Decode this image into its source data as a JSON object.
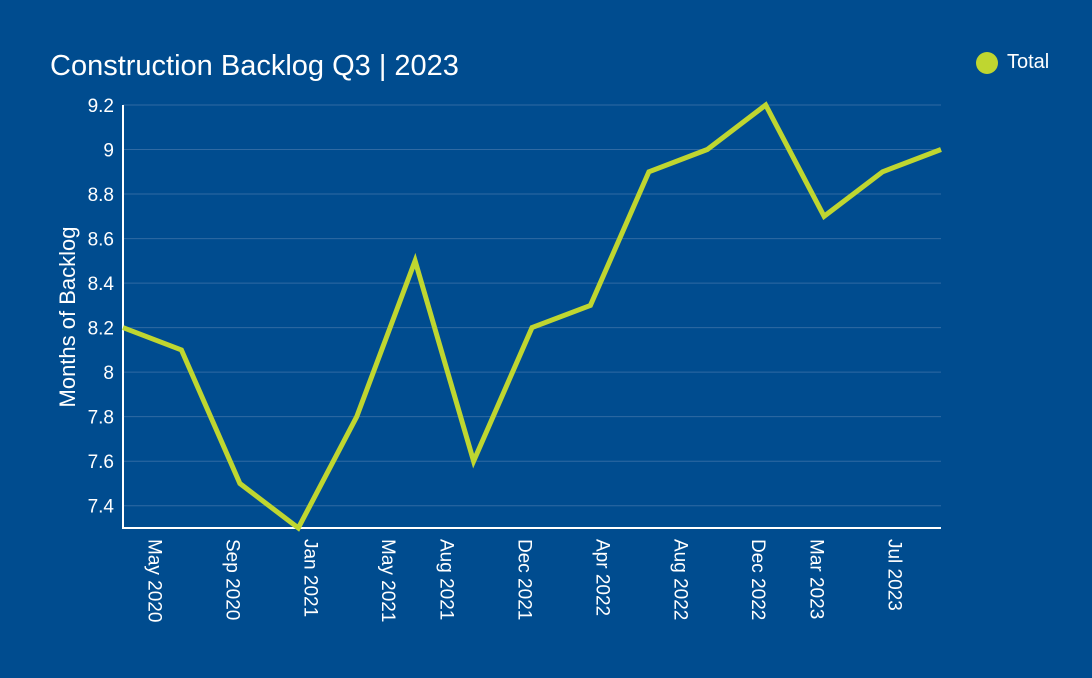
{
  "chart_data": {
    "type": "line",
    "title": "Construction Backlog Q3 | 2023",
    "ylabel": "Months of Backlog",
    "xlabel": "",
    "ylim": [
      7.3,
      9.2
    ],
    "yticks": [
      "7.4",
      "7.6",
      "7.8",
      "8",
      "8.2",
      "8.4",
      "8.6",
      "8.8",
      "9",
      "9.2"
    ],
    "xticks": [
      "May 2020",
      "Sep 2020",
      "Jan 2021",
      "May 2021",
      "Aug 2021",
      "Dec 2021",
      "Apr 2022",
      "Aug 2022",
      "Dec 2022",
      "Mar 2023",
      "Jul 2023"
    ],
    "legend_position": "top-right",
    "grid": true,
    "series": [
      {
        "name": "Total",
        "color": "#bfd630",
        "x": [
          "2020-04",
          "2020-07",
          "2020-10",
          "2021-01",
          "2021-04",
          "2021-07",
          "2021-10",
          "2022-01",
          "2022-04",
          "2022-07",
          "2022-10",
          "2023-01",
          "2023-04",
          "2023-07",
          "2023-10"
        ],
        "values": [
          8.2,
          8.1,
          7.5,
          7.3,
          7.8,
          8.5,
          7.6,
          8.2,
          8.3,
          8.9,
          9.0,
          9.2,
          8.7,
          8.9,
          9.0
        ]
      }
    ]
  },
  "colors": {
    "background": "#004c8f",
    "line": "#bfd630",
    "grid": "#2f6aa3",
    "axis": "#ffffff"
  }
}
